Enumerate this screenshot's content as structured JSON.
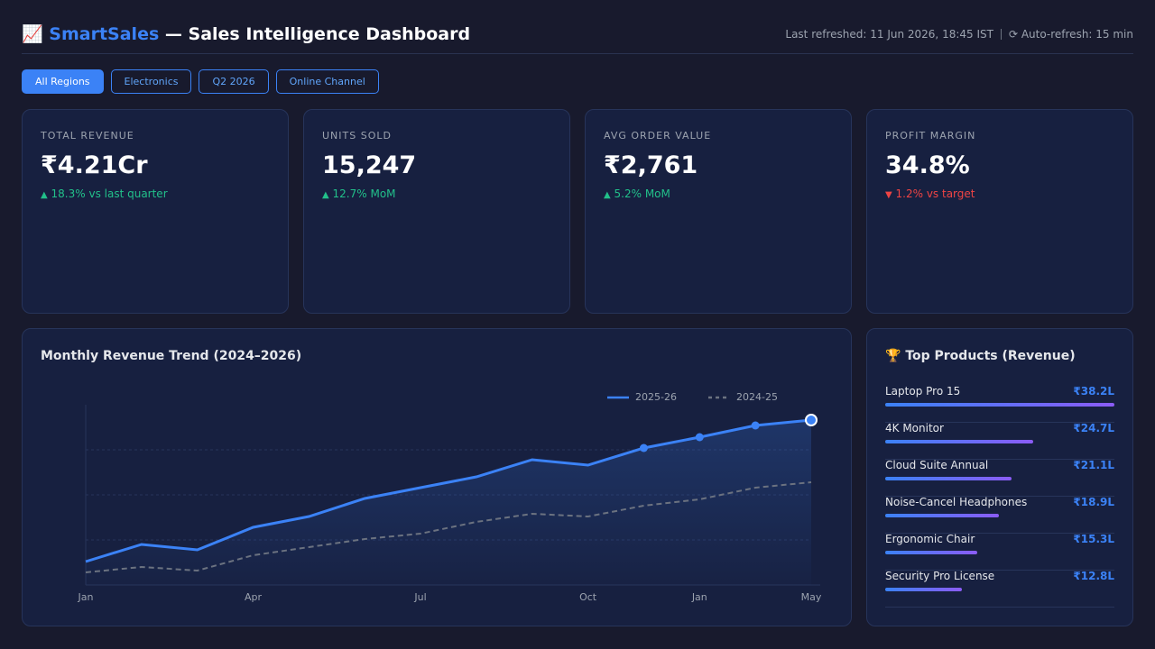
{
  "header": {
    "icon": "📈",
    "brand": "SmartSales",
    "title": "— Sales Intelligence Dashboard",
    "refreshed": "Last refreshed: 11 Jun 2026, 18:45 IST",
    "auto_refresh": "⟳ Auto-refresh: 15 min"
  },
  "filters": [
    "All Regions",
    "Electronics",
    "Q2 2026",
    "Online Channel"
  ],
  "kpis": [
    {
      "label": "TOTAL REVENUE",
      "value": "₹4.21Cr",
      "arrow": "▲",
      "delta": "18.3% vs last quarter"
    },
    {
      "label": "UNITS SOLD",
      "value": "15,247",
      "arrow": "▲",
      "delta": "12.7% MoM"
    },
    {
      "label": "AVG ORDER VALUE",
      "value": "₹2,761",
      "arrow": "▲",
      "delta": "5.2% MoM"
    },
    {
      "label": "PROFIT MARGIN",
      "value": "34.8%",
      "arrow": "▼",
      "delta": "1.2% vs target"
    }
  ],
  "chart_data": {
    "type": "line",
    "title": "Monthly Revenue Trend (2024–2026)",
    "categories": [
      "Jan",
      null,
      null,
      "Apr",
      null,
      null,
      "Jul",
      null,
      null,
      "Oct",
      null,
      "Jan",
      null,
      "May"
    ],
    "ylim": [
      0,
      100
    ],
    "series": [
      {
        "name": "2025-26",
        "color": "#3b82f6",
        "values": [
          13,
          22.5,
          19.5,
          32,
          38,
          48,
          54,
          60,
          69.5,
          66.5,
          76,
          82,
          88.5,
          91.5
        ]
      },
      {
        "name": "2024-25",
        "color": "#6b7280",
        "values": [
          7,
          10,
          8,
          16.5,
          21,
          25.5,
          28.5,
          35,
          39.5,
          38,
          44,
          47.5,
          54,
          57
        ]
      }
    ]
  },
  "top_products": {
    "icon": "🏆",
    "title": "Top Products (Revenue)",
    "items": [
      {
        "name": "Laptop Pro 15",
        "value": 38.2,
        "value_label": "₹38.2L"
      },
      {
        "name": "4K Monitor",
        "value": 24.7,
        "value_label": "₹24.7L"
      },
      {
        "name": "Cloud Suite Annual",
        "value": 21.1,
        "value_label": "₹21.1L"
      },
      {
        "name": "Noise-Cancel Headphones",
        "value": 18.9,
        "value_label": "₹18.9L"
      },
      {
        "name": "Ergonomic Chair",
        "value": 15.3,
        "value_label": "₹15.3L"
      },
      {
        "name": "Security Pro License",
        "value": 12.8,
        "value_label": "₹12.8L"
      }
    ]
  }
}
